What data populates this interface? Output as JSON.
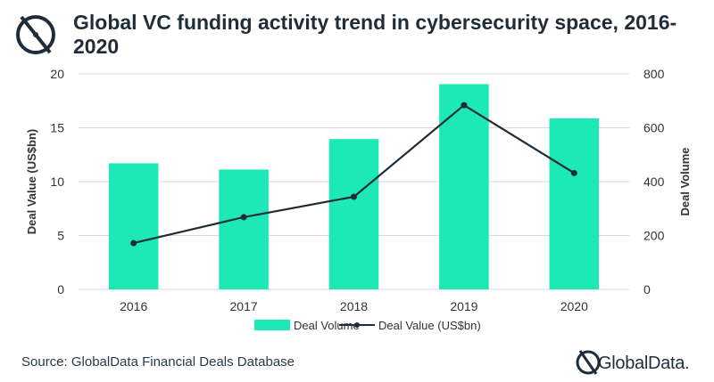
{
  "header": {
    "title": "Global VC funding activity trend in cybersecurity space, 2016-2020"
  },
  "footer": {
    "source": "Source: GlobalData Financial Deals Database",
    "brand": "GlobalData."
  },
  "colors": {
    "bar": "#1de9b6",
    "line": "#1f2d3a",
    "grid": "#d9d9d9",
    "text": "#333333"
  },
  "chart_data": {
    "type": "bar",
    "categories": [
      "2016",
      "2017",
      "2018",
      "2019",
      "2020"
    ],
    "series": [
      {
        "name": "Deal Volume",
        "type": "bar",
        "axis": "right",
        "values": [
          468,
          445,
          558,
          762,
          635
        ]
      },
      {
        "name": "Deal Value (US$bn)",
        "type": "line",
        "axis": "left",
        "values": [
          4.3,
          6.7,
          8.6,
          17.1,
          10.8
        ]
      }
    ],
    "ylabel": "Deal Value (US$bn)",
    "y2label": "Deal Volume",
    "ylim": [
      0,
      20
    ],
    "y2lim": [
      0,
      800
    ],
    "yticks": [
      "0",
      "5",
      "10",
      "15",
      "20"
    ],
    "y2ticks": [
      "0",
      "200",
      "400",
      "600",
      "800"
    ],
    "grid": true,
    "legend": "bottom"
  }
}
